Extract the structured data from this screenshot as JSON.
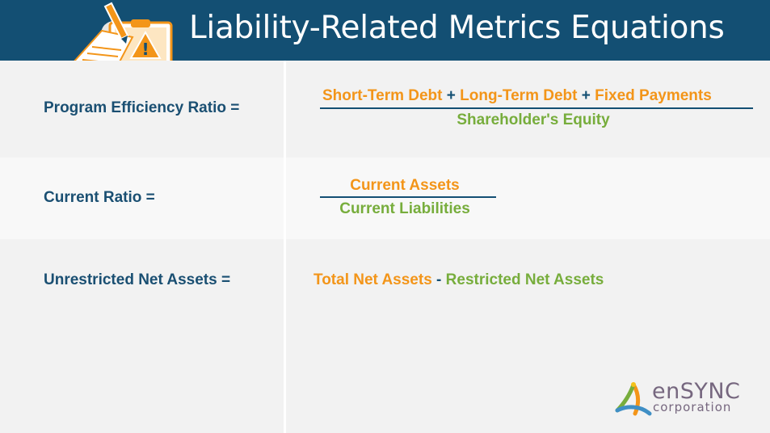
{
  "header": {
    "title": "Liability-Related Metrics Equations"
  },
  "colors": {
    "header_bg": "#134f73",
    "label": "#1a4f72",
    "numerator": "#f39519",
    "denominator": "#77ad3c",
    "operator": "#134f73"
  },
  "rows": [
    {
      "label": "Program Efficiency Ratio =",
      "numerator": [
        "Short-Term Debt",
        "+",
        "Long-Term Debt",
        "+",
        "Fixed Payments"
      ],
      "denominator": "Shareholder's Equity"
    },
    {
      "label": "Current Ratio =",
      "numerator": "Current Assets",
      "denominator": "Current Liabilities"
    },
    {
      "label": "Unrestricted Net Assets =",
      "left_term": "Total Net Assets",
      "operator": "-",
      "right_term": "Restricted Net Assets"
    }
  ],
  "logo": {
    "name": "enSYNC",
    "sub": "corporation"
  },
  "illustration": {
    "icon": "clipboard-warning-icon"
  }
}
